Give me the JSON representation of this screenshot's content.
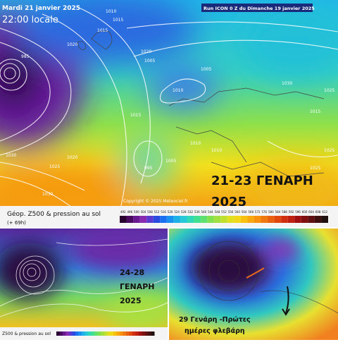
{
  "top_map": {
    "date": "Mardi 21 janvier 2025",
    "time": "22:00 locale",
    "run": "Run ICON 0 Z du Dimanche 19 janvier 2025",
    "overlay_dates": "21-23 ΓΕΝΑΡΗ",
    "overlay_year": "2025",
    "copyright": "Copyright © 2025 Meteociel.fr",
    "legend_title": "Géop. Z500 & pression au sol",
    "legend_step": "(+ 69h)",
    "isobar_labels": [
      "1010",
      "1015",
      "1015",
      "1020",
      "1020",
      "1005",
      "1005",
      "1010",
      "1015",
      "1005",
      "1010",
      "985",
      "1030",
      "1025",
      "1020",
      "1030",
      "1025",
      "1010",
      "1025",
      "1015",
      "995",
      "1030",
      "1025"
    ],
    "scale": [
      492,
      496,
      500,
      504,
      508,
      512,
      516,
      520,
      524,
      528,
      532,
      536,
      540,
      544,
      548,
      552,
      556,
      560,
      564,
      568,
      572,
      576,
      580,
      584,
      588,
      592,
      596,
      600,
      604,
      608,
      612
    ]
  },
  "bottom_left_map": {
    "overlay_dates": "24-28",
    "overlay_month": "ΓΕΝΑΡΗ",
    "overlay_year": "2025",
    "legend_title": "Z500 & pression au sol"
  },
  "bottom_right_map": {
    "caption_line1": "29 Γενάρη -Πρώτες",
    "caption_line2": "ημέρες φλεβάρη"
  }
}
